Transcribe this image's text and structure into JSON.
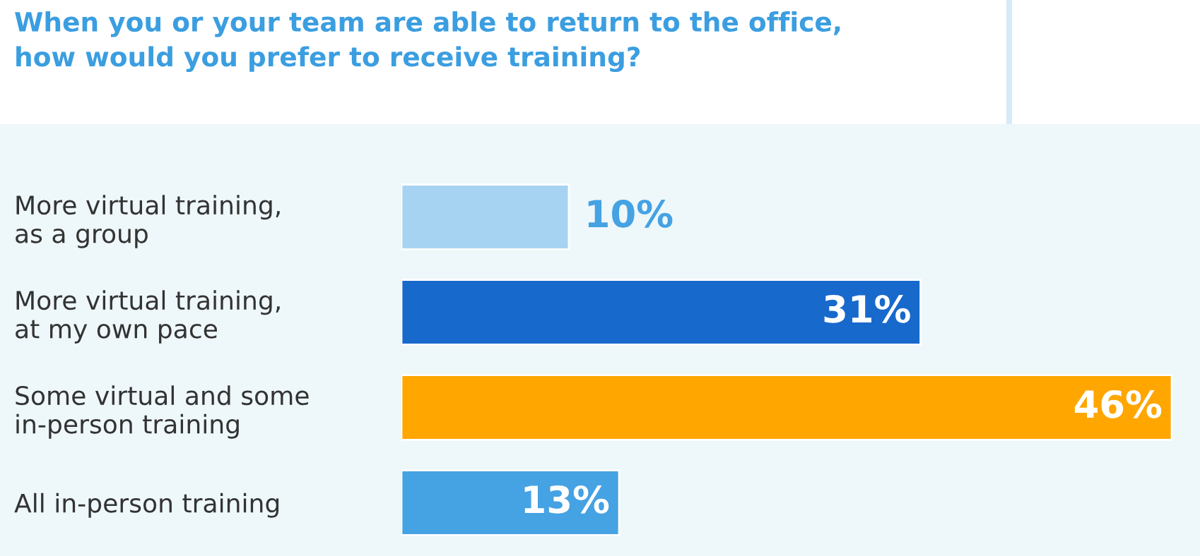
{
  "chart_data": {
    "type": "bar",
    "orientation": "horizontal",
    "title": "When you or your team are able to return to the office,\nhow would you prefer to receive training?",
    "categories": [
      "More virtual training,\nas a group",
      "More virtual training,\nat my own pace",
      "Some virtual and some\nin-person training",
      "All in-person training"
    ],
    "values": [
      10,
      31,
      46,
      13
    ],
    "colors": [
      "#a6d3f2",
      "#1769cc",
      "#ffa600",
      "#45a2e3"
    ],
    "value_labels": [
      "10%",
      "31%",
      "46%",
      "13%"
    ],
    "grid": false,
    "legend": false
  }
}
